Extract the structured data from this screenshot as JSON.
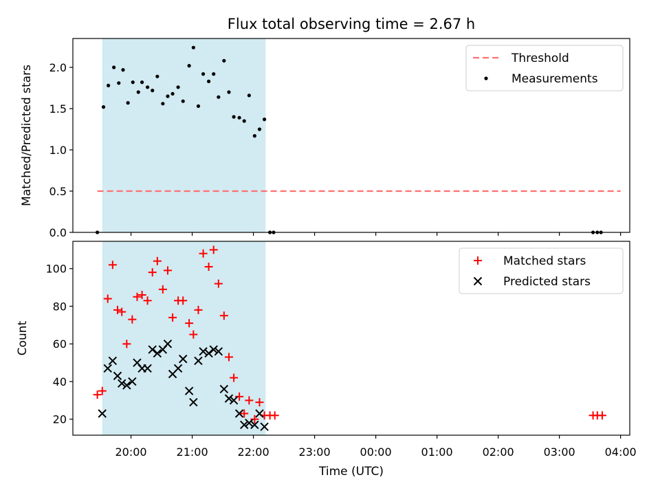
{
  "chart_data": {
    "title": "Flux total observing time = 2.67 h",
    "xlabel": "Time (UTC)",
    "x_unit": "hours (UTC)",
    "xlim": [
      19.05,
      28.15
    ],
    "x_ticks": [
      {
        "value": 20,
        "label": "20:00"
      },
      {
        "value": 21,
        "label": "21:00"
      },
      {
        "value": 22,
        "label": "22:00"
      },
      {
        "value": 23,
        "label": "23:00"
      },
      {
        "value": 24,
        "label": "00:00"
      },
      {
        "value": 25,
        "label": "01:00"
      },
      {
        "value": 26,
        "label": "02:00"
      },
      {
        "value": 27,
        "label": "03:00"
      },
      {
        "value": 28,
        "label": "04:00"
      }
    ],
    "span": {
      "x_start": 19.53,
      "x_end": 22.2,
      "color": "#add8e6"
    },
    "charts": [
      {
        "type": "scatter",
        "ylabel": "Matched/Predicted stars",
        "ylim": [
          0.0,
          2.35
        ],
        "y_ticks": [
          "0.0",
          "0.5",
          "1.0",
          "1.5",
          "2.0"
        ],
        "legend": {
          "position": "top-right",
          "entries": [
            "Threshold",
            "Measurements"
          ]
        },
        "threshold": {
          "name": "Threshold",
          "value": 0.5,
          "x_start": 19.45,
          "x_end": 28.0,
          "color": "#ff7070"
        },
        "series": [
          {
            "name": "Measurements",
            "color": "#000000",
            "points": [
              [
                19.45,
                0.0
              ],
              [
                19.55,
                1.52
              ],
              [
                19.63,
                1.78
              ],
              [
                19.72,
                2.0
              ],
              [
                19.8,
                1.81
              ],
              [
                19.87,
                1.97
              ],
              [
                19.95,
                1.57
              ],
              [
                20.03,
                1.82
              ],
              [
                20.12,
                1.7
              ],
              [
                20.18,
                1.82
              ],
              [
                20.27,
                1.76
              ],
              [
                20.35,
                1.72
              ],
              [
                20.43,
                1.89
              ],
              [
                20.52,
                1.56
              ],
              [
                20.6,
                1.65
              ],
              [
                20.68,
                1.68
              ],
              [
                20.77,
                1.76
              ],
              [
                20.85,
                1.59
              ],
              [
                20.95,
                2.02
              ],
              [
                21.02,
                2.24
              ],
              [
                21.1,
                1.53
              ],
              [
                21.18,
                1.92
              ],
              [
                21.27,
                1.83
              ],
              [
                21.35,
                1.92
              ],
              [
                21.43,
                1.64
              ],
              [
                21.52,
                2.08
              ],
              [
                21.6,
                1.7
              ],
              [
                21.68,
                1.4
              ],
              [
                21.77,
                1.39
              ],
              [
                21.85,
                1.35
              ],
              [
                21.93,
                1.66
              ],
              [
                22.02,
                1.17
              ],
              [
                22.1,
                1.25
              ],
              [
                22.18,
                1.37
              ],
              [
                22.27,
                0.0
              ],
              [
                22.33,
                0.0
              ],
              [
                27.55,
                0.0
              ],
              [
                27.62,
                0.0
              ],
              [
                27.68,
                0.0
              ]
            ]
          }
        ]
      },
      {
        "type": "scatter",
        "ylabel": "Count",
        "ylim": [
          11.5,
          114.5
        ],
        "y_ticks": [
          "20",
          "40",
          "60",
          "80",
          "100"
        ],
        "legend": {
          "position": "top-right",
          "entries": [
            "Matched stars",
            "Predicted stars"
          ]
        },
        "series": [
          {
            "name": "Matched stars",
            "color": "#ff0000",
            "marker": "+",
            "points": [
              [
                19.45,
                33
              ],
              [
                19.53,
                35
              ],
              [
                19.62,
                84
              ],
              [
                19.7,
                102
              ],
              [
                19.78,
                78
              ],
              [
                19.85,
                77
              ],
              [
                19.93,
                60
              ],
              [
                20.02,
                73
              ],
              [
                20.1,
                85
              ],
              [
                20.18,
                86
              ],
              [
                20.27,
                83
              ],
              [
                20.35,
                98
              ],
              [
                20.43,
                104
              ],
              [
                20.52,
                89
              ],
              [
                20.6,
                99
              ],
              [
                20.68,
                74
              ],
              [
                20.77,
                83
              ],
              [
                20.85,
                83
              ],
              [
                20.95,
                71
              ],
              [
                21.02,
                65
              ],
              [
                21.1,
                78
              ],
              [
                21.18,
                108
              ],
              [
                21.27,
                101
              ],
              [
                21.35,
                110
              ],
              [
                21.43,
                92
              ],
              [
                21.52,
                75
              ],
              [
                21.6,
                53
              ],
              [
                21.68,
                42
              ],
              [
                21.77,
                32
              ],
              [
                21.85,
                23
              ],
              [
                21.93,
                30
              ],
              [
                22.02,
                20
              ],
              [
                22.1,
                29
              ],
              [
                22.18,
                22
              ],
              [
                22.27,
                22
              ],
              [
                22.35,
                22
              ],
              [
                27.55,
                22
              ],
              [
                27.62,
                22
              ],
              [
                27.7,
                22
              ]
            ]
          },
          {
            "name": "Predicted stars",
            "color": "#000000",
            "marker": "x",
            "points": [
              [
                19.53,
                23
              ],
              [
                19.62,
                47
              ],
              [
                19.7,
                51
              ],
              [
                19.78,
                43
              ],
              [
                19.85,
                39
              ],
              [
                19.93,
                38
              ],
              [
                20.02,
                40
              ],
              [
                20.1,
                50
              ],
              [
                20.18,
                47
              ],
              [
                20.27,
                47
              ],
              [
                20.35,
                57
              ],
              [
                20.43,
                55
              ],
              [
                20.52,
                57
              ],
              [
                20.6,
                60
              ],
              [
                20.68,
                44
              ],
              [
                20.77,
                47
              ],
              [
                20.85,
                52
              ],
              [
                20.95,
                35
              ],
              [
                21.02,
                29
              ],
              [
                21.1,
                51
              ],
              [
                21.18,
                56
              ],
              [
                21.27,
                55
              ],
              [
                21.35,
                57
              ],
              [
                21.43,
                56
              ],
              [
                21.52,
                36
              ],
              [
                21.6,
                31
              ],
              [
                21.68,
                30
              ],
              [
                21.77,
                23
              ],
              [
                21.85,
                17
              ],
              [
                21.93,
                18
              ],
              [
                22.02,
                17
              ],
              [
                22.1,
                23
              ],
              [
                22.18,
                16
              ]
            ]
          }
        ]
      }
    ]
  }
}
